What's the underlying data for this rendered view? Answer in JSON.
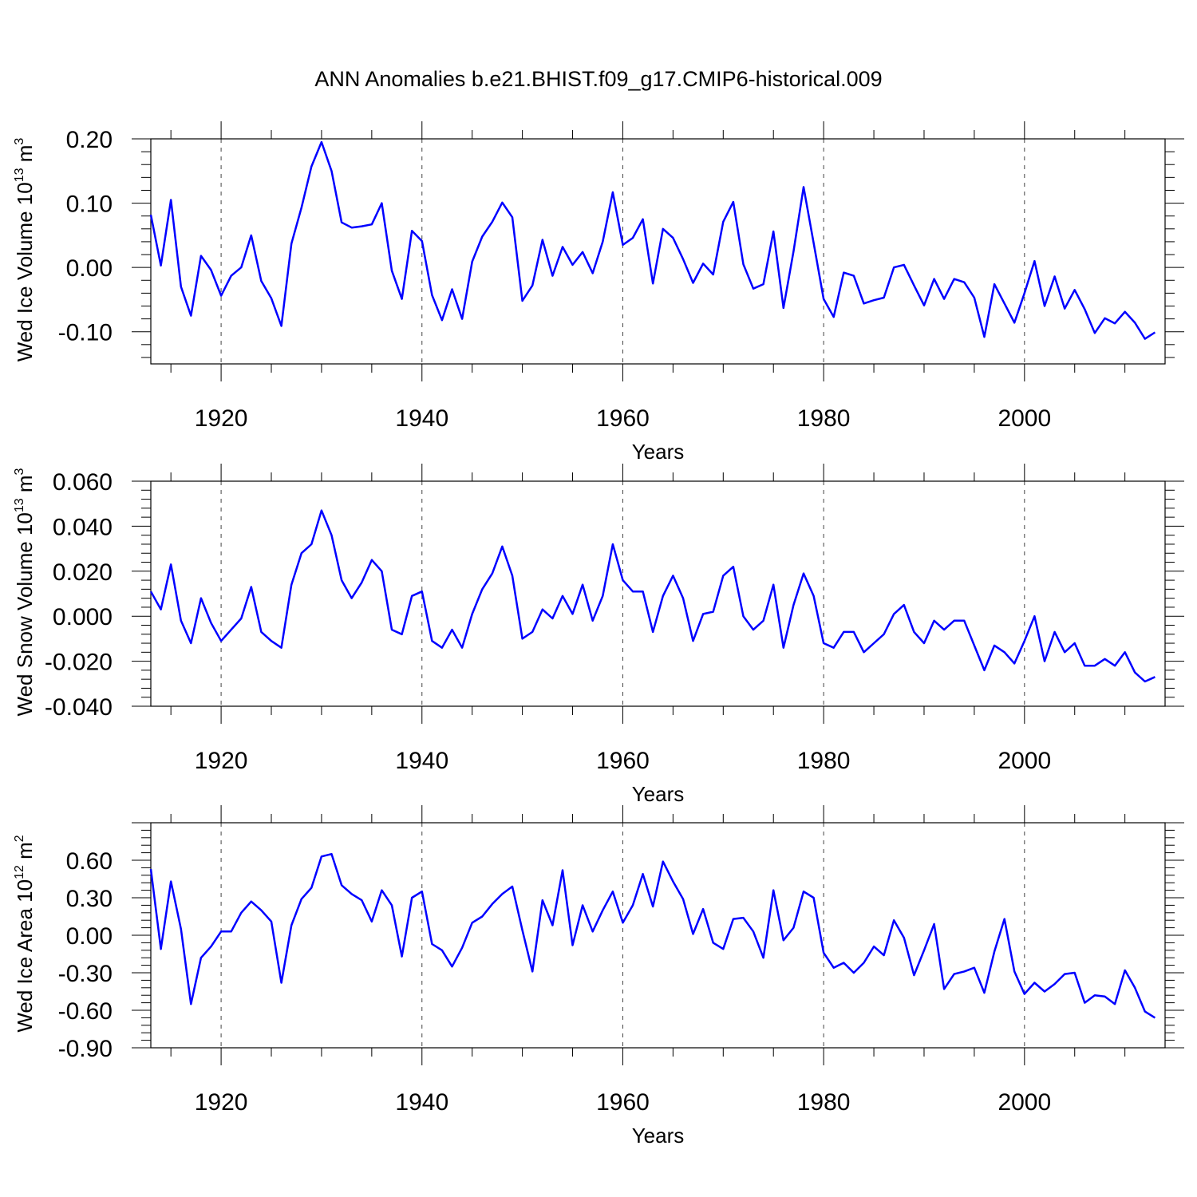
{
  "title": "ANN Anomalies b.e21.BHIST.f09_g17.CMIP6-historical.009",
  "colors": {
    "series": "#0000ff",
    "axis": "#000000",
    "grid": "#444444"
  },
  "chart_data": [
    {
      "type": "line",
      "ylabel": "Wed Ice Volume 10",
      "ylabel_exp": "13",
      "ylabel_unit": " m",
      "ylabel_unit_exp": "3",
      "xlabel": "Years",
      "xlim": [
        1913,
        2014
      ],
      "ylim": [
        -0.15,
        0.2
      ],
      "x_ticks": [
        1920,
        1940,
        1960,
        1980,
        2000
      ],
      "x_tick_labels": [
        "1920",
        "1940",
        "1960",
        "1980",
        "2000"
      ],
      "y_ticks": [
        0.2,
        0.1,
        0.0,
        -0.1
      ],
      "y_tick_labels": [
        "0.20",
        "0.10",
        "0.00",
        "-0.10"
      ],
      "grid": "dashed vertical at major x ticks",
      "series": [
        {
          "x_start": 1913,
          "values": [
            0.082,
            0.003,
            0.105,
            -0.03,
            -0.075,
            0.018,
            -0.004,
            -0.044,
            -0.013,
            0.0,
            0.05,
            -0.021,
            -0.048,
            -0.091,
            0.037,
            0.093,
            0.157,
            0.195,
            0.15,
            0.07,
            0.062,
            0.064,
            0.067,
            0.1,
            -0.005,
            -0.049,
            0.057,
            0.041,
            -0.043,
            -0.082,
            -0.034,
            -0.08,
            0.009,
            0.048,
            0.071,
            0.101,
            0.078,
            -0.052,
            -0.028,
            0.043,
            -0.013,
            0.032,
            0.004,
            0.024,
            -0.009,
            0.04,
            0.117,
            0.035,
            0.046,
            0.075,
            -0.025,
            0.06,
            0.046,
            0.013,
            -0.024,
            0.006,
            -0.011,
            0.071,
            0.102,
            0.005,
            -0.033,
            -0.026,
            0.056,
            -0.063,
            0.025,
            0.125,
            0.038,
            -0.049,
            -0.077,
            -0.008,
            -0.013,
            -0.056,
            -0.051,
            -0.047,
            0.0,
            0.004,
            -0.028,
            -0.059,
            -0.018,
            -0.049,
            -0.018,
            -0.023,
            -0.047,
            -0.108,
            -0.026,
            -0.056,
            -0.086,
            -0.04,
            0.01,
            -0.06,
            -0.014,
            -0.064,
            -0.035,
            -0.065,
            -0.102,
            -0.079,
            -0.087,
            -0.069,
            -0.086,
            -0.111,
            -0.101
          ]
        }
      ]
    },
    {
      "type": "line",
      "ylabel": "Wed Snow Volume 10",
      "ylabel_exp": "13",
      "ylabel_unit": " m",
      "ylabel_unit_exp": "3",
      "xlabel": "Years",
      "xlim": [
        1913,
        2014
      ],
      "ylim": [
        -0.04,
        0.06
      ],
      "x_ticks": [
        1920,
        1940,
        1960,
        1980,
        2000
      ],
      "x_tick_labels": [
        "1920",
        "1940",
        "1960",
        "1980",
        "2000"
      ],
      "y_ticks": [
        0.06,
        0.04,
        0.02,
        0.0,
        -0.02,
        -0.04
      ],
      "y_tick_labels": [
        "0.060",
        "0.040",
        "0.020",
        "0.000",
        "-0.020",
        "-0.040"
      ],
      "grid": "dashed vertical at major x ticks",
      "series": [
        {
          "x_start": 1913,
          "values": [
            0.011,
            0.003,
            0.023,
            -0.002,
            -0.012,
            0.008,
            -0.003,
            -0.011,
            -0.006,
            -0.001,
            0.013,
            -0.007,
            -0.011,
            -0.014,
            0.014,
            0.028,
            0.032,
            0.047,
            0.036,
            0.016,
            0.008,
            0.015,
            0.025,
            0.02,
            -0.006,
            -0.008,
            0.009,
            0.011,
            -0.011,
            -0.014,
            -0.006,
            -0.014,
            0.001,
            0.012,
            0.019,
            0.031,
            0.018,
            -0.01,
            -0.007,
            0.003,
            -0.001,
            0.009,
            0.001,
            0.014,
            -0.002,
            0.009,
            0.032,
            0.016,
            0.011,
            0.011,
            -0.007,
            0.009,
            0.018,
            0.008,
            -0.011,
            0.001,
            0.002,
            0.018,
            0.022,
            0.0,
            -0.006,
            -0.002,
            0.014,
            -0.014,
            0.005,
            0.019,
            0.009,
            -0.012,
            -0.014,
            -0.007,
            -0.007,
            -0.016,
            -0.012,
            -0.008,
            0.001,
            0.005,
            -0.007,
            -0.012,
            -0.002,
            -0.006,
            -0.002,
            -0.002,
            -0.013,
            -0.024,
            -0.013,
            -0.016,
            -0.021,
            -0.011,
            0.0,
            -0.02,
            -0.007,
            -0.016,
            -0.012,
            -0.022,
            -0.022,
            -0.019,
            -0.022,
            -0.016,
            -0.025,
            -0.029,
            -0.027
          ]
        }
      ]
    },
    {
      "type": "line",
      "ylabel": "Wed Ice Area 10",
      "ylabel_exp": "12",
      "ylabel_unit": " m",
      "ylabel_unit_exp": "2",
      "xlabel": "Years",
      "xlim": [
        1913,
        2014
      ],
      "ylim": [
        -0.9,
        0.9
      ],
      "x_ticks": [
        1920,
        1940,
        1960,
        1980,
        2000
      ],
      "x_tick_labels": [
        "1920",
        "1940",
        "1960",
        "1980",
        "2000"
      ],
      "y_ticks": [
        0.6,
        0.3,
        0.0,
        -0.3,
        -0.6,
        -0.9
      ],
      "y_tick_labels": [
        "0.60",
        "0.30",
        "0.00",
        "-0.30",
        "-0.60",
        "-0.90"
      ],
      "grid": "dashed vertical at major x ticks",
      "series": [
        {
          "x_start": 1913,
          "values": [
            0.53,
            -0.11,
            0.43,
            0.05,
            -0.55,
            -0.18,
            -0.09,
            0.03,
            0.03,
            0.18,
            0.27,
            0.2,
            0.11,
            -0.38,
            0.08,
            0.29,
            0.38,
            0.63,
            0.65,
            0.4,
            0.33,
            0.28,
            0.11,
            0.36,
            0.24,
            -0.17,
            0.3,
            0.35,
            -0.07,
            -0.12,
            -0.25,
            -0.1,
            0.1,
            0.15,
            0.25,
            0.33,
            0.39,
            0.04,
            -0.29,
            0.28,
            0.08,
            0.52,
            -0.08,
            0.24,
            0.03,
            0.2,
            0.35,
            0.1,
            0.24,
            0.49,
            0.23,
            0.59,
            0.43,
            0.29,
            0.01,
            0.21,
            -0.06,
            -0.11,
            0.13,
            0.14,
            0.03,
            -0.18,
            0.36,
            -0.04,
            0.06,
            0.35,
            0.3,
            -0.14,
            -0.26,
            -0.22,
            -0.3,
            -0.22,
            -0.09,
            -0.16,
            0.12,
            -0.02,
            -0.32,
            -0.12,
            0.09,
            -0.43,
            -0.31,
            -0.29,
            -0.26,
            -0.46,
            -0.13,
            0.13,
            -0.29,
            -0.47,
            -0.38,
            -0.45,
            -0.39,
            -0.31,
            -0.3,
            -0.54,
            -0.48,
            -0.49,
            -0.55,
            -0.28,
            -0.42,
            -0.61,
            -0.66
          ]
        }
      ]
    }
  ]
}
